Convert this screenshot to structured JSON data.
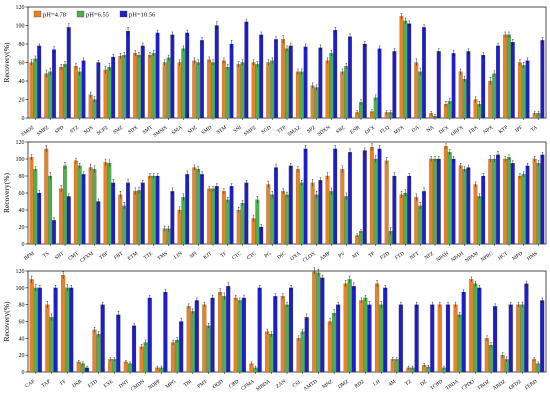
{
  "colors": {
    "pH=4.78": "#e8822a",
    "pH=6.55": "#4caf50",
    "pH=10.56": "#1f1fc8",
    "error": "#000000"
  },
  "chart_data": [
    {
      "type": "bar",
      "ylabel": "Recovery(%)",
      "ylim": [
        0,
        120
      ],
      "yticks": [
        0,
        20,
        40,
        60,
        80,
        100,
        120
      ],
      "legend": {
        "placement": "top-left",
        "entries": [
          "pH=4.78",
          "pH=6.55",
          "pH=10.56"
        ]
      },
      "categories": [
        "SMOZ",
        "SMPZ",
        "SPD",
        "STZ",
        "SQX",
        "SCPZ",
        "SMZ",
        "SDX",
        "SMT",
        "SMMX",
        "SMA",
        "SDZ",
        "SMD",
        "STM",
        "SNI",
        "SMPZ",
        "SGD",
        "TTP",
        "SMAZ",
        "SPZ",
        "SDXN",
        "SBZ",
        "ENR",
        "OFX",
        "FLQ",
        "MFX",
        "OA",
        "NA",
        "DFX",
        "ORFX",
        "FRX",
        "NPX",
        "KTP",
        "IPF",
        "TA"
      ],
      "series": [
        {
          "name": "pH=4.78",
          "values": [
            60,
            48,
            55,
            56,
            25,
            52,
            67,
            70,
            68,
            60,
            60,
            62,
            63,
            62,
            58,
            60,
            60,
            85,
            50,
            35,
            62,
            50,
            6,
            7,
            6,
            110,
            60,
            5,
            15,
            50,
            20,
            40,
            90,
            60,
            5
          ],
          "errors": [
            3,
            4,
            3,
            3,
            3,
            4,
            3,
            3,
            3,
            3,
            3,
            3,
            3,
            3,
            3,
            3,
            3,
            4,
            3,
            3,
            3,
            3,
            2,
            2,
            2,
            3,
            4,
            2,
            3,
            3,
            3,
            4,
            3,
            3,
            2
          ]
        },
        {
          "name": "pH=6.55",
          "values": [
            64,
            50,
            58,
            50,
            20,
            55,
            68,
            68,
            70,
            65,
            75,
            60,
            60,
            55,
            60,
            58,
            62,
            75,
            50,
            33,
            70,
            56,
            17,
            22,
            6,
            105,
            50,
            2,
            18,
            42,
            15,
            48,
            90,
            57,
            5
          ],
          "errors": [
            3,
            4,
            3,
            4,
            3,
            4,
            3,
            3,
            3,
            3,
            3,
            3,
            3,
            3,
            3,
            3,
            3,
            3,
            3,
            3,
            3,
            3,
            3,
            3,
            2,
            3,
            4,
            2,
            3,
            3,
            3,
            3,
            3,
            3,
            2
          ]
        },
        {
          "name": "pH=10.56",
          "values": [
            78,
            74,
            98,
            62,
            60,
            66,
            94,
            78,
            92,
            90,
            92,
            84,
            100,
            80,
            104,
            90,
            85,
            78,
            77,
            76,
            95,
            88,
            80,
            75,
            72,
            102,
            98,
            72,
            70,
            72,
            68,
            78,
            82,
            62,
            84
          ],
          "errors": [
            2,
            3,
            4,
            3,
            2,
            3,
            4,
            3,
            3,
            3,
            3,
            3,
            4,
            4,
            3,
            3,
            3,
            3,
            3,
            3,
            3,
            3,
            3,
            3,
            3,
            3,
            3,
            3,
            3,
            3,
            3,
            3,
            3,
            3,
            3
          ]
        }
      ]
    },
    {
      "type": "bar",
      "ylabel": "Recovery(%)",
      "ylim": [
        0,
        120
      ],
      "yticks": [
        0,
        20,
        40,
        60,
        80,
        100,
        120
      ],
      "categories": [
        "BPM",
        "TS",
        "SBT",
        "CMT",
        "CPXM",
        "TBF",
        "FBT",
        "ETM",
        "TTE",
        "TMS",
        "LIN",
        "SPI",
        "KJT",
        "TF",
        "CTC",
        "CTC",
        "PG",
        "DIC",
        "OXA",
        "CLOX",
        "AMP",
        "PV",
        "MT",
        "TP",
        "FZD",
        "FTD",
        "NFT",
        "NFZ",
        "NPAH",
        "NPAH",
        "NPAM",
        "NPRC",
        "HCT",
        "MPD",
        "HMS"
      ],
      "series": [
        {
          "name": "pH=4.78",
          "values": [
            102,
            112,
            65,
            98,
            90,
            96,
            58,
            62,
            80,
            18,
            40,
            90,
            65,
            62,
            40,
            30,
            70,
            62,
            88,
            72,
            80,
            88,
            10,
            114,
            98,
            58,
            55,
            100,
            115,
            92,
            70,
            100,
            100,
            80,
            100
          ],
          "errors": [
            3,
            4,
            4,
            3,
            4,
            4,
            4,
            4,
            3,
            3,
            4,
            3,
            3,
            3,
            3,
            4,
            4,
            3,
            3,
            4,
            4,
            4,
            2,
            4,
            4,
            4,
            4,
            3,
            3,
            3,
            3,
            4,
            3,
            3,
            3
          ]
        },
        {
          "name": "pH=6.55",
          "values": [
            88,
            80,
            92,
            92,
            88,
            95,
            45,
            63,
            80,
            18,
            55,
            88,
            65,
            52,
            48,
            52,
            58,
            58,
            72,
            58,
            62,
            56,
            15,
            100,
            15,
            60,
            45,
            100,
            108,
            88,
            56,
            100,
            102,
            82,
            95
          ],
          "errors": [
            3,
            4,
            4,
            3,
            4,
            4,
            4,
            4,
            3,
            3,
            4,
            3,
            3,
            3,
            3,
            4,
            4,
            3,
            3,
            4,
            4,
            4,
            2,
            4,
            4,
            4,
            4,
            3,
            3,
            3,
            3,
            4,
            3,
            3,
            3
          ]
        },
        {
          "name": "pH=10.56",
          "values": [
            60,
            28,
            56,
            82,
            50,
            72,
            72,
            72,
            80,
            62,
            82,
            82,
            68,
            68,
            72,
            20,
            90,
            92,
            112,
            75,
            112,
            108,
            110,
            112,
            80,
            80,
            62,
            100,
            100,
            90,
            80,
            105,
            95,
            92,
            105
          ],
          "errors": [
            3,
            3,
            3,
            3,
            3,
            4,
            4,
            3,
            3,
            4,
            4,
            3,
            3,
            3,
            3,
            3,
            4,
            3,
            4,
            3,
            4,
            4,
            3,
            4,
            4,
            3,
            4,
            3,
            3,
            3,
            3,
            4,
            3,
            3,
            3
          ]
        }
      ]
    },
    {
      "type": "bar",
      "ylabel": "Recovery(%)",
      "ylim": [
        0,
        120
      ],
      "yticks": [
        0,
        20,
        40,
        60,
        80,
        100,
        120
      ],
      "categories": [
        "CAP",
        "TAP",
        "FF",
        "DSB",
        "ETD",
        "EXE",
        "DNT",
        "CMDN",
        "NDPP",
        "MPG",
        "TBI",
        "PMT",
        "OQD",
        "CBD",
        "CPMA",
        "MBDA",
        "ZAN",
        "CSL",
        "AMTD",
        "MNZ",
        "DMZ",
        "RDZ",
        "LH",
        "4M",
        "TZ",
        "DZ",
        "TCBD",
        "TBDA",
        "CPDO",
        "FBDZ",
        "ABDZ",
        "OFDZ",
        "FEBD"
      ],
      "series": [
        {
          "name": "pH=4.78",
          "values": [
            110,
            80,
            115,
            12,
            50,
            15,
            12,
            30,
            5,
            35,
            78,
            80,
            95,
            88,
            10,
            48,
            90,
            40,
            120,
            60,
            105,
            85,
            105,
            15,
            5,
            8,
            80,
            80,
            110,
            40,
            20,
            80,
            15
          ],
          "errors": [
            4,
            4,
            4,
            2,
            3,
            2,
            2,
            3,
            2,
            3,
            3,
            3,
            4,
            3,
            2,
            3,
            3,
            3,
            4,
            4,
            4,
            3,
            4,
            2,
            2,
            2,
            3,
            3,
            3,
            3,
            3,
            3,
            2
          ]
        },
        {
          "name": "pH=6.55",
          "values": [
            100,
            65,
            100,
            10,
            45,
            15,
            10,
            35,
            5,
            38,
            72,
            55,
            90,
            85,
            5,
            45,
            80,
            48,
            118,
            70,
            110,
            88,
            80,
            15,
            5,
            6,
            5,
            68,
            105,
            32,
            15,
            80,
            10
          ],
          "errors": [
            4,
            4,
            4,
            2,
            3,
            2,
            2,
            3,
            2,
            3,
            3,
            3,
            4,
            3,
            2,
            3,
            3,
            3,
            4,
            4,
            4,
            3,
            4,
            2,
            2,
            2,
            2,
            3,
            3,
            3,
            3,
            3,
            2
          ]
        },
        {
          "name": "pH=10.56",
          "values": [
            100,
            100,
            100,
            5,
            80,
            68,
            55,
            88,
            95,
            60,
            85,
            88,
            102,
            88,
            100,
            90,
            100,
            65,
            112,
            80,
            102,
            80,
            100,
            80,
            80,
            80,
            80,
            95,
            100,
            78,
            80,
            105,
            85
          ],
          "errors": [
            3,
            3,
            3,
            2,
            3,
            4,
            3,
            3,
            3,
            4,
            3,
            3,
            4,
            3,
            3,
            3,
            3,
            4,
            3,
            3,
            4,
            4,
            3,
            3,
            3,
            3,
            3,
            3,
            3,
            3,
            3,
            3,
            3
          ]
        }
      ]
    }
  ]
}
